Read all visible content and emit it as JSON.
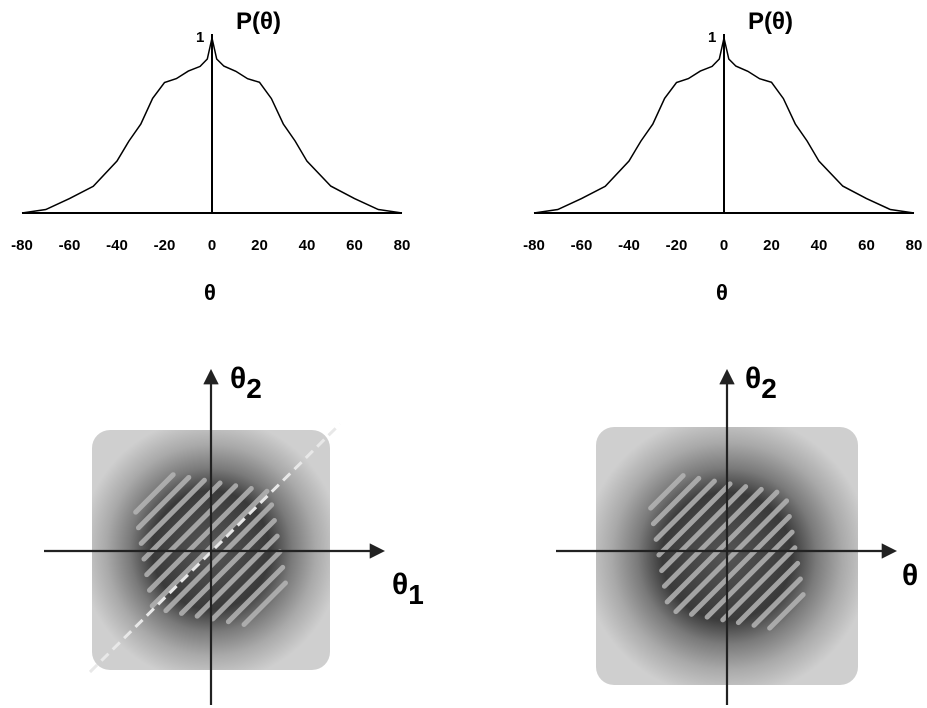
{
  "chart_data": [
    {
      "type": "line",
      "panel": "top-left",
      "title": "P(θ)",
      "xlabel": "θ",
      "ylabel": "",
      "peak_label": "1",
      "xlim": [
        -80,
        80
      ],
      "ylim": [
        0,
        1
      ],
      "x_ticks": [
        "-80",
        "-60",
        "-40",
        "-20",
        "0",
        "20",
        "40",
        "60",
        "80"
      ],
      "x": [
        -80,
        -70,
        -60,
        -50,
        -40,
        -35,
        -30,
        -25,
        -20,
        -15,
        -10,
        -5,
        -2,
        0,
        2,
        5,
        10,
        15,
        20,
        25,
        30,
        35,
        40,
        50,
        60,
        70,
        80
      ],
      "y": [
        0.0,
        0.02,
        0.07,
        0.16,
        0.3,
        0.4,
        0.52,
        0.65,
        0.74,
        0.78,
        0.8,
        0.84,
        0.88,
        1.0,
        0.88,
        0.84,
        0.8,
        0.78,
        0.74,
        0.65,
        0.52,
        0.4,
        0.3,
        0.16,
        0.07,
        0.02,
        0.0
      ]
    },
    {
      "type": "line",
      "panel": "top-right",
      "title": "P(θ)",
      "xlabel": "θ",
      "ylabel": "",
      "peak_label": "1",
      "xlim": [
        -80,
        80
      ],
      "ylim": [
        0,
        1
      ],
      "x_ticks": [
        "-80",
        "-60",
        "-40",
        "-20",
        "0",
        "20",
        "40",
        "60",
        "80"
      ],
      "x": [
        -80,
        -70,
        -60,
        -50,
        -40,
        -35,
        -30,
        -25,
        -20,
        -15,
        -10,
        -5,
        -2,
        0,
        2,
        5,
        10,
        15,
        20,
        25,
        30,
        35,
        40,
        50,
        60,
        70,
        80
      ],
      "y": [
        0.0,
        0.02,
        0.07,
        0.16,
        0.3,
        0.4,
        0.52,
        0.65,
        0.74,
        0.78,
        0.8,
        0.84,
        0.88,
        1.0,
        0.88,
        0.84,
        0.8,
        0.78,
        0.74,
        0.65,
        0.52,
        0.4,
        0.3,
        0.16,
        0.07,
        0.02,
        0.0
      ]
    },
    {
      "type": "heatmap",
      "panel": "bottom-left",
      "xlabel": "θ1",
      "ylabel": "θ2"
    },
    {
      "type": "heatmap",
      "panel": "bottom-right",
      "xlabel": "θ",
      "ylabel": "θ2"
    }
  ],
  "colors": {
    "ink": "#000000",
    "map_outer": "#c8c8c8",
    "map_mid": "#8a8a8a",
    "map_dark": "#3a3a3a",
    "map_stripe_light": "#b5b5b5"
  }
}
